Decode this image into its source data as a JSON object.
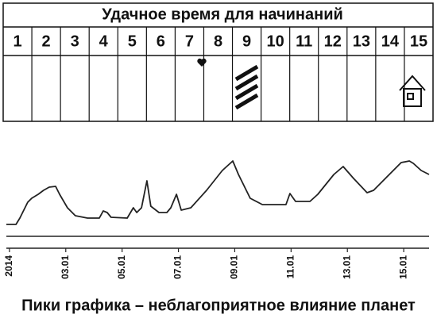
{
  "table": {
    "title": "Удачное время для начинаний",
    "days": [
      "1",
      "2",
      "3",
      "4",
      "5",
      "6",
      "7",
      "8",
      "9",
      "10",
      "11",
      "12",
      "13",
      "14",
      "15"
    ]
  },
  "chart_data": {
    "type": "line",
    "title": "Пики графика – неблагоприятное влияние планет",
    "x": [
      0.89,
      1.23,
      1.37,
      1.65,
      1.79,
      2.02,
      2.21,
      2.41,
      2.64,
      2.78,
      3.06,
      3.34,
      3.77,
      4.19,
      4.33,
      4.47,
      4.61,
      5.18,
      5.4,
      5.52,
      5.69,
      5.88,
      6.02,
      6.31,
      6.59,
      6.73,
      6.93,
      7.1,
      7.44,
      8.0,
      8.56,
      8.93,
      9.13,
      9.55,
      9.98,
      10.82,
      10.96,
      11.16,
      11.67,
      11.95,
      12.52,
      12.85,
      13.22,
      13.7,
      13.93,
      14.49,
      14.91,
      15.2,
      15.34,
      15.62,
      15.9
    ],
    "series": [
      {
        "color": "#222222",
        "values": [
          15,
          15,
          23,
          43,
          48,
          53,
          58,
          62,
          63,
          53,
          36,
          26,
          23,
          23,
          32,
          30,
          24,
          23,
          36,
          30,
          36,
          70,
          38,
          30,
          30,
          36,
          53,
          33,
          36,
          58,
          83,
          95,
          78,
          48,
          40,
          40,
          54,
          44,
          44,
          53,
          78,
          88,
          73,
          55,
          58,
          78,
          93,
          95,
          92,
          83,
          78
        ]
      }
    ],
    "xlim": [
      0.89,
      15.9
    ],
    "xticks": [
      {
        "value": 1,
        "label": "2014"
      },
      {
        "value": 3,
        "label": "03.01"
      },
      {
        "value": 5,
        "label": "05.01"
      },
      {
        "value": 7,
        "label": "07.01"
      },
      {
        "value": 9,
        "label": "09.01"
      },
      {
        "value": 11,
        "label": "11.01"
      },
      {
        "value": 13,
        "label": "13.01"
      },
      {
        "value": 15,
        "label": "15.01"
      }
    ],
    "ylim": [
      0,
      100
    ]
  }
}
